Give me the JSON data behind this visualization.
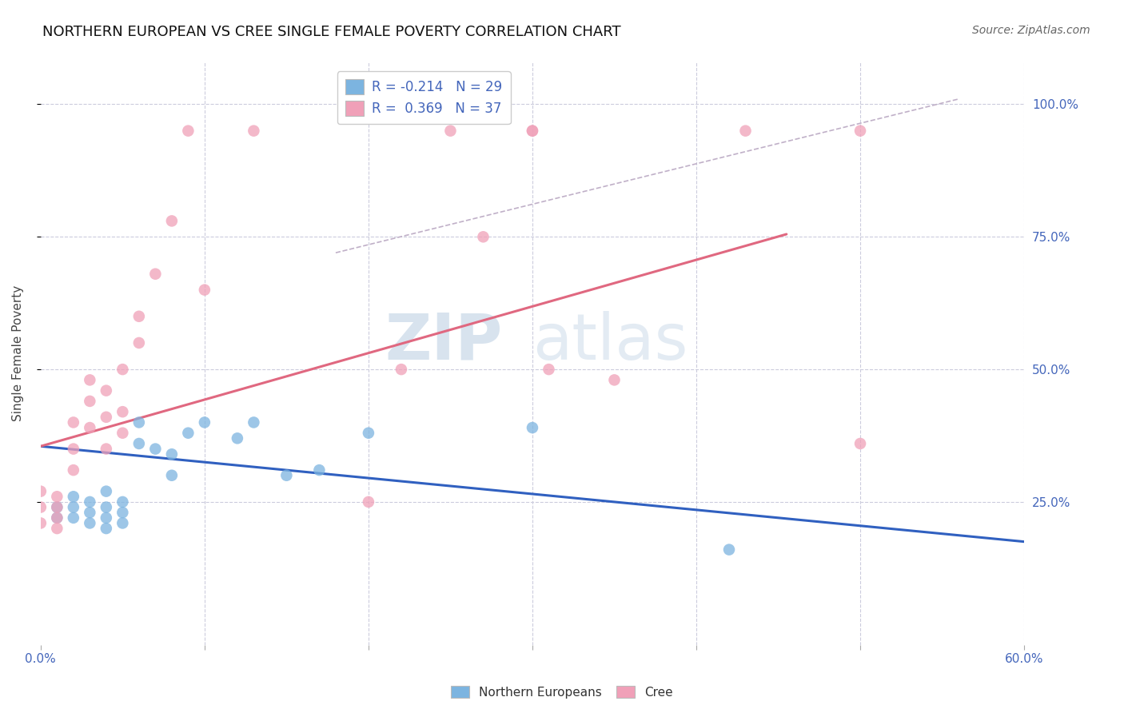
{
  "title": "NORTHERN EUROPEAN VS CREE SINGLE FEMALE POVERTY CORRELATION CHART",
  "source": "Source: ZipAtlas.com",
  "ylabel": "Single Female Poverty",
  "xlim": [
    0.0,
    0.6
  ],
  "ylim": [
    -0.02,
    1.08
  ],
  "xticks": [
    0.0,
    0.1,
    0.2,
    0.3,
    0.4,
    0.5,
    0.6
  ],
  "xticklabels": [
    "0.0%",
    "",
    "",
    "",
    "",
    "",
    "60.0%"
  ],
  "yticks": [
    0.25,
    0.5,
    0.75,
    1.0
  ],
  "yticklabels": [
    "25.0%",
    "50.0%",
    "75.0%",
    "100.0%"
  ],
  "blue_R": -0.214,
  "blue_N": 29,
  "pink_R": 0.369,
  "pink_N": 37,
  "blue_color": "#7cb4e0",
  "pink_color": "#f0a0b8",
  "blue_line_color": "#3060c0",
  "pink_line_color": "#e06880",
  "diagonal_line_color": "#c0b0c8",
  "watermark_zip": "ZIP",
  "watermark_atlas": "atlas",
  "blue_scatter_x": [
    0.01,
    0.01,
    0.02,
    0.02,
    0.02,
    0.03,
    0.03,
    0.03,
    0.04,
    0.04,
    0.04,
    0.04,
    0.05,
    0.05,
    0.05,
    0.06,
    0.06,
    0.07,
    0.08,
    0.08,
    0.09,
    0.1,
    0.12,
    0.13,
    0.15,
    0.17,
    0.2,
    0.3,
    0.42
  ],
  "blue_scatter_y": [
    0.22,
    0.24,
    0.22,
    0.24,
    0.26,
    0.21,
    0.23,
    0.25,
    0.2,
    0.22,
    0.24,
    0.27,
    0.21,
    0.23,
    0.25,
    0.36,
    0.4,
    0.35,
    0.3,
    0.34,
    0.38,
    0.4,
    0.37,
    0.4,
    0.3,
    0.31,
    0.38,
    0.39,
    0.16
  ],
  "pink_scatter_x": [
    0.0,
    0.0,
    0.0,
    0.01,
    0.01,
    0.01,
    0.01,
    0.02,
    0.02,
    0.02,
    0.03,
    0.03,
    0.03,
    0.04,
    0.04,
    0.04,
    0.05,
    0.05,
    0.05,
    0.06,
    0.06,
    0.07,
    0.08,
    0.09,
    0.1,
    0.13,
    0.2,
    0.22,
    0.25,
    0.27,
    0.3,
    0.3,
    0.31,
    0.35,
    0.43,
    0.5,
    0.5
  ],
  "pink_scatter_y": [
    0.21,
    0.24,
    0.27,
    0.2,
    0.22,
    0.24,
    0.26,
    0.31,
    0.35,
    0.4,
    0.39,
    0.44,
    0.48,
    0.35,
    0.41,
    0.46,
    0.38,
    0.42,
    0.5,
    0.55,
    0.6,
    0.68,
    0.78,
    0.95,
    0.65,
    0.95,
    0.25,
    0.5,
    0.95,
    0.75,
    0.95,
    0.95,
    0.5,
    0.48,
    0.95,
    0.95,
    0.36
  ],
  "blue_line_x": [
    0.0,
    0.6
  ],
  "blue_line_y": [
    0.355,
    0.175
  ],
  "pink_line_x": [
    0.0,
    0.455
  ],
  "pink_line_y": [
    0.355,
    0.755
  ],
  "diag_line_x": [
    0.18,
    0.56
  ],
  "diag_line_y": [
    0.72,
    1.01
  ],
  "background_color": "#ffffff",
  "grid_color": "#ccccdd",
  "title_fontsize": 13,
  "tick_label_color": "#4466bb",
  "ylabel_color": "#444444",
  "source_color": "#666666"
}
